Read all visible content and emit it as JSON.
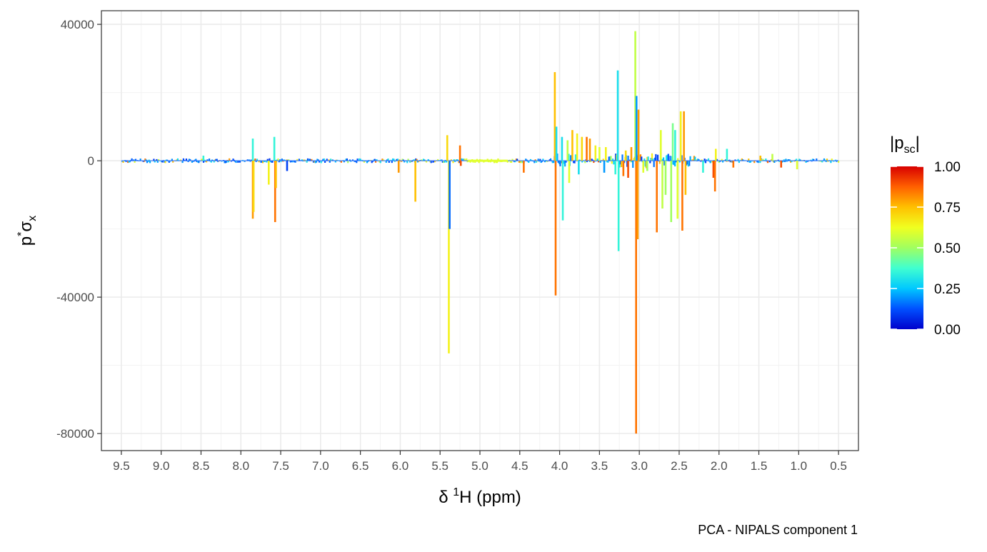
{
  "chart_data": {
    "type": "line",
    "title": "",
    "caption": "PCA - NIPALS component 1",
    "xlabel_parts": [
      "δ ",
      "1",
      "H (ppm)"
    ],
    "ylabel_parts": [
      "p",
      "*",
      "σ",
      "x"
    ],
    "x_reversed": true,
    "xlim": [
      9.75,
      0.25
    ],
    "ylim": [
      -85000,
      44000
    ],
    "x_ticks": [
      9.5,
      9.0,
      8.5,
      8.0,
      7.5,
      7.0,
      6.5,
      6.0,
      5.5,
      5.0,
      4.5,
      4.0,
      3.5,
      3.0,
      2.5,
      2.0,
      1.5,
      1.0,
      0.5
    ],
    "x_tick_labels": [
      "9.5",
      "9.0",
      "8.5",
      "8.0",
      "7.5",
      "7.0",
      "6.5",
      "6.0",
      "5.5",
      "5.0",
      "4.5",
      "4.0",
      "3.5",
      "3.0",
      "2.5",
      "2.0",
      "1.5",
      "1.0",
      "0.5"
    ],
    "y_ticks": [
      40000,
      0,
      -40000,
      -80000
    ],
    "y_tick_labels": [
      "40000",
      "0",
      "-40000",
      "-80000"
    ],
    "grid": true,
    "legend": {
      "title_parts": [
        "|p",
        "sc",
        "|"
      ],
      "placement": "right",
      "colorscale": [
        "#0000cc",
        "#0050ff",
        "#00c8ff",
        "#40ffd0",
        "#a0ff60",
        "#f0ff20",
        "#ffc000",
        "#ff6000",
        "#d80000"
      ],
      "ticks": [
        0.0,
        0.25,
        0.5,
        0.75,
        1.0
      ],
      "tick_labels": [
        "0.00",
        "0.25",
        "0.50",
        "0.75",
        "1.00"
      ]
    },
    "peaks": [
      {
        "x": 8.47,
        "y": 1500,
        "c": 0.35
      },
      {
        "x": 7.85,
        "y": 6500,
        "c": 0.35
      },
      {
        "x": 7.85,
        "y": -17000,
        "c": 0.8
      },
      {
        "x": 7.84,
        "y": -15000,
        "c": 0.7
      },
      {
        "x": 7.65,
        "y": -7000,
        "c": 0.65
      },
      {
        "x": 7.58,
        "y": 7000,
        "c": 0.35
      },
      {
        "x": 7.57,
        "y": -18000,
        "c": 0.85
      },
      {
        "x": 7.56,
        "y": -8000,
        "c": 0.75
      },
      {
        "x": 7.42,
        "y": -3000,
        "c": 0.1
      },
      {
        "x": 6.02,
        "y": -3500,
        "c": 0.8
      },
      {
        "x": 5.81,
        "y": -12000,
        "c": 0.75
      },
      {
        "x": 5.41,
        "y": 7500,
        "c": 0.7
      },
      {
        "x": 5.39,
        "y": -56500,
        "c": 0.65
      },
      {
        "x": 5.38,
        "y": -20000,
        "c": 0.15
      },
      {
        "x": 5.25,
        "y": 4500,
        "c": 0.85
      },
      {
        "x": 5.24,
        "y": -1500,
        "c": 0.9
      },
      {
        "x": 4.45,
        "y": -3500,
        "c": 0.85
      },
      {
        "x": 4.06,
        "y": 26000,
        "c": 0.75
      },
      {
        "x": 4.05,
        "y": -39500,
        "c": 0.85
      },
      {
        "x": 4.04,
        "y": 10000,
        "c": 0.3
      },
      {
        "x": 3.97,
        "y": 7000,
        "c": 0.3
      },
      {
        "x": 3.96,
        "y": -17500,
        "c": 0.35
      },
      {
        "x": 3.9,
        "y": 6000,
        "c": 0.55
      },
      {
        "x": 3.88,
        "y": -6500,
        "c": 0.6
      },
      {
        "x": 3.84,
        "y": 9000,
        "c": 0.75
      },
      {
        "x": 3.78,
        "y": 8000,
        "c": 0.65
      },
      {
        "x": 3.76,
        "y": -4000,
        "c": 0.3
      },
      {
        "x": 3.72,
        "y": 7000,
        "c": 0.7
      },
      {
        "x": 3.66,
        "y": 7000,
        "c": 0.85
      },
      {
        "x": 3.62,
        "y": 6500,
        "c": 0.8
      },
      {
        "x": 3.55,
        "y": 4500,
        "c": 0.65
      },
      {
        "x": 3.5,
        "y": 4000,
        "c": 0.6
      },
      {
        "x": 3.44,
        "y": -3500,
        "c": 0.2
      },
      {
        "x": 3.42,
        "y": 4000,
        "c": 0.65
      },
      {
        "x": 3.3,
        "y": -4000,
        "c": 0.35
      },
      {
        "x": 3.27,
        "y": 26500,
        "c": 0.3
      },
      {
        "x": 3.26,
        "y": -26500,
        "c": 0.35
      },
      {
        "x": 3.2,
        "y": -4500,
        "c": 0.85
      },
      {
        "x": 3.17,
        "y": 3000,
        "c": 0.7
      },
      {
        "x": 3.14,
        "y": -5000,
        "c": 0.9
      },
      {
        "x": 3.1,
        "y": 4000,
        "c": 0.8
      },
      {
        "x": 3.05,
        "y": 38000,
        "c": 0.55
      },
      {
        "x": 3.04,
        "y": -80000,
        "c": 0.85
      },
      {
        "x": 3.035,
        "y": 19000,
        "c": 0.2
      },
      {
        "x": 3.02,
        "y": -23000,
        "c": 0.8
      },
      {
        "x": 3.01,
        "y": 15000,
        "c": 0.8
      },
      {
        "x": 2.95,
        "y": -3500,
        "c": 0.6
      },
      {
        "x": 2.9,
        "y": -3000,
        "c": 0.5
      },
      {
        "x": 2.78,
        "y": -21000,
        "c": 0.85
      },
      {
        "x": 2.73,
        "y": 9000,
        "c": 0.6
      },
      {
        "x": 2.71,
        "y": -14000,
        "c": 0.55
      },
      {
        "x": 2.67,
        "y": -10000,
        "c": 0.5
      },
      {
        "x": 2.6,
        "y": -18000,
        "c": 0.5
      },
      {
        "x": 2.58,
        "y": 11000,
        "c": 0.45
      },
      {
        "x": 2.55,
        "y": 9000,
        "c": 0.35
      },
      {
        "x": 2.52,
        "y": -17000,
        "c": 0.6
      },
      {
        "x": 2.48,
        "y": 14500,
        "c": 0.65
      },
      {
        "x": 2.46,
        "y": -20500,
        "c": 0.85
      },
      {
        "x": 2.44,
        "y": 14500,
        "c": 0.8
      },
      {
        "x": 2.42,
        "y": -10000,
        "c": 0.75
      },
      {
        "x": 2.2,
        "y": -3500,
        "c": 0.35
      },
      {
        "x": 2.07,
        "y": -5000,
        "c": 0.9
      },
      {
        "x": 2.05,
        "y": -9000,
        "c": 0.85
      },
      {
        "x": 2.04,
        "y": 3500,
        "c": 0.65
      },
      {
        "x": 1.9,
        "y": 3500,
        "c": 0.35
      },
      {
        "x": 1.82,
        "y": -2000,
        "c": 0.85
      },
      {
        "x": 1.48,
        "y": 1500,
        "c": 0.75
      },
      {
        "x": 1.33,
        "y": 2000,
        "c": 0.55
      },
      {
        "x": 1.22,
        "y": -2000,
        "c": 0.9
      },
      {
        "x": 1.02,
        "y": -2500,
        "c": 0.6
      }
    ]
  }
}
